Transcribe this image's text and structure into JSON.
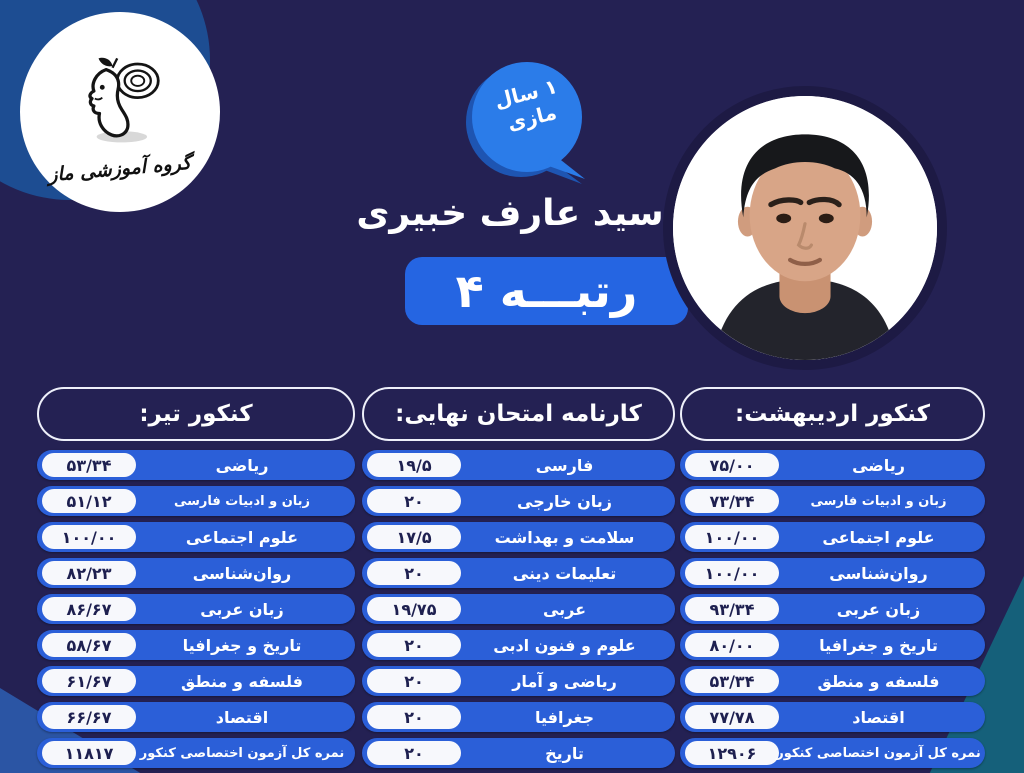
{
  "logo": {
    "brand_text": "گروه آموزشی ماز",
    "icon": "head-maze-logo"
  },
  "bubble": {
    "line1": "۱ سال",
    "line2": "مازی"
  },
  "student": {
    "name": "سید عارف خبیری",
    "rank_label": "رتبـــه ۴",
    "portrait": "student-photo"
  },
  "colors": {
    "background": "#242153",
    "bar_blue": "#2b5fd8",
    "badge_blue": "#2565e2",
    "bubble_blue": "#2b7ce9",
    "bubble_shadow": "#1e55b2",
    "corner_blob_blue": "#1d4d92",
    "bottom_left_blue": "#2b55a4",
    "bottom_right_teal": "#15607a",
    "pill_text_navy": "#1e2050"
  },
  "columns": [
    {
      "id": "konkur-ordibehesht",
      "title": "کنکور اردیبهشت:",
      "rows": [
        {
          "subject": "ریاضی",
          "score": "۷۵/۰۰"
        },
        {
          "subject": "زبان و ادبیات فارسی",
          "score": "۷۳/۳۴"
        },
        {
          "subject": "علوم اجتماعی",
          "score": "۱۰۰/۰۰"
        },
        {
          "subject": "روان‌شناسی",
          "score": "۱۰۰/۰۰"
        },
        {
          "subject": "زبان عربی",
          "score": "۹۳/۳۴"
        },
        {
          "subject": "تاریخ و جغرافیا",
          "score": "۸۰/۰۰"
        },
        {
          "subject": "فلسفه و منطق",
          "score": "۵۳/۳۴"
        },
        {
          "subject": "اقتصاد",
          "score": "۷۷/۷۸"
        },
        {
          "subject": "نمره کل آزمون اختصاصی کنکور",
          "score": "۱۲۹۰۶"
        }
      ]
    },
    {
      "id": "karname-emtehan-nahayi",
      "title": "کارنامه امتحان نهایی:",
      "rows": [
        {
          "subject": "فارسی",
          "score": "۱۹/۵"
        },
        {
          "subject": "زبان خارجی",
          "score": "۲۰"
        },
        {
          "subject": "سلامت و بهداشت",
          "score": "۱۷/۵"
        },
        {
          "subject": "تعلیمات دینی",
          "score": "۲۰"
        },
        {
          "subject": "عربی",
          "score": "۱۹/۷۵"
        },
        {
          "subject": "علوم و فنون ادبی",
          "score": "۲۰"
        },
        {
          "subject": "ریاضی و آمار",
          "score": "۲۰"
        },
        {
          "subject": "جغرافیا",
          "score": "۲۰"
        },
        {
          "subject": "تاریخ",
          "score": "۲۰"
        }
      ]
    },
    {
      "id": "konkur-tir",
      "title": "کنکور تیر:",
      "rows": [
        {
          "subject": "ریاضی",
          "score": "۵۳/۳۴"
        },
        {
          "subject": "زبان و ادبیات فارسی",
          "score": "۵۱/۱۲"
        },
        {
          "subject": "علوم اجتماعی",
          "score": "۱۰۰/۰۰"
        },
        {
          "subject": "روان‌شناسی",
          "score": "۸۲/۲۳"
        },
        {
          "subject": "زبان عربی",
          "score": "۸۶/۶۷"
        },
        {
          "subject": "تاریخ و جغرافیا",
          "score": "۵۸/۶۷"
        },
        {
          "subject": "فلسفه و منطق",
          "score": "۶۱/۶۷"
        },
        {
          "subject": "اقتصاد",
          "score": "۶۶/۶۷"
        },
        {
          "subject": "نمره کل آزمون اختصاصی کنکور",
          "score": "۱۱۸۱۷"
        }
      ]
    }
  ]
}
